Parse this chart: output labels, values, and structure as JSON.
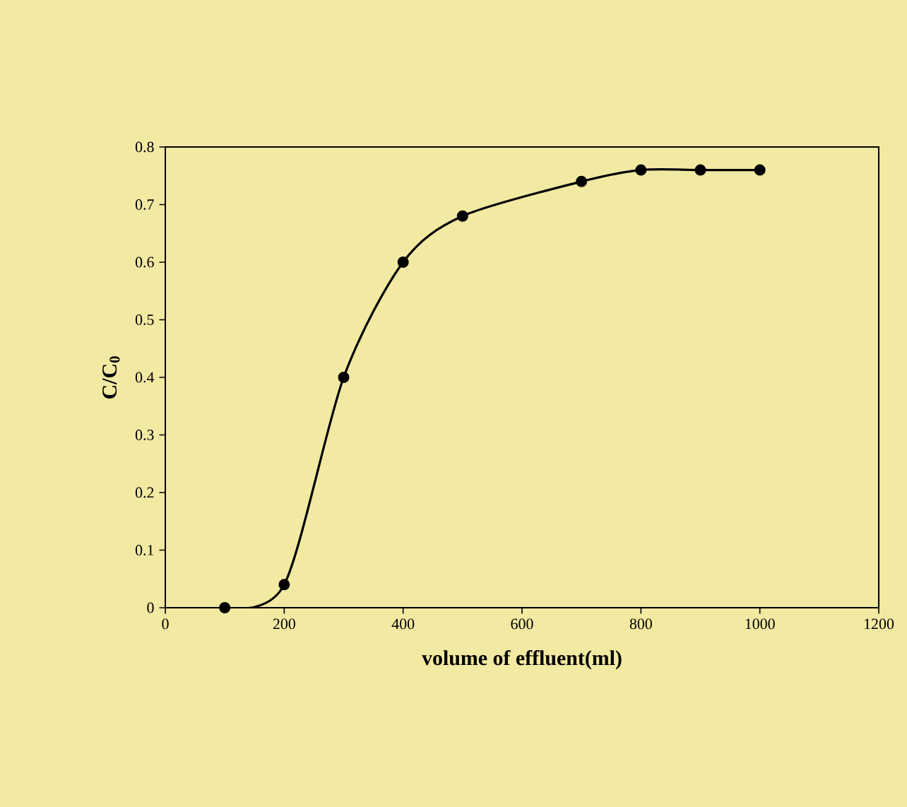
{
  "chart_data": {
    "type": "line",
    "xlabel": "volume of effluent(ml)",
    "ylabel": "C/C$_{0}$",
    "x": [
      100,
      200,
      300,
      400,
      500,
      700,
      800,
      900,
      1000
    ],
    "series": [
      {
        "color": "#000000",
        "values": [
          0,
          0.04,
          0.4,
          0.6,
          0.68,
          0.74,
          0.76,
          0.76,
          0.76
        ]
      }
    ],
    "xlim": [
      0,
      1200
    ],
    "xticks": [
      0,
      200,
      400,
      600,
      800,
      1000,
      1200
    ],
    "ylim": [
      0,
      0.8
    ],
    "yticks": [
      0,
      0.1,
      0.2,
      0.3,
      0.4,
      0.5,
      0.6,
      0.7,
      0.8
    ],
    "marker": "circle",
    "line_style": "solid"
  }
}
